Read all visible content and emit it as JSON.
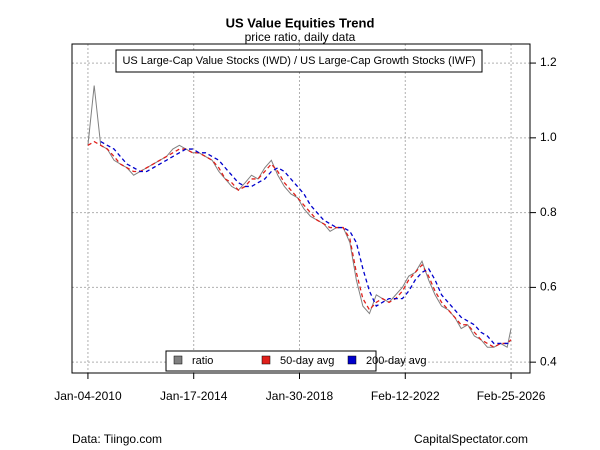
{
  "chart_data": {
    "type": "line",
    "title": "US Value Equities Trend",
    "subtitle": "price ratio, daily data",
    "annotation": "US Large-Cap Value Stocks (IWD) / US Large-Cap Growth Stocks (IWF)",
    "footer_left": "Data: Tiingo.com",
    "footer_right": "CapitalSpectator.com",
    "x": [
      "2010-01-04",
      "2010-04-01",
      "2010-07-01",
      "2010-10-01",
      "2011-01-03",
      "2011-04-01",
      "2011-07-01",
      "2011-10-03",
      "2012-01-03",
      "2012-04-02",
      "2012-07-02",
      "2012-10-01",
      "2013-01-02",
      "2013-04-01",
      "2013-07-01",
      "2013-10-01",
      "2014-01-02",
      "2014-04-01",
      "2014-07-01",
      "2014-10-01",
      "2015-01-02",
      "2015-04-01",
      "2015-07-01",
      "2015-10-01",
      "2016-01-04",
      "2016-04-01",
      "2016-07-01",
      "2016-10-03",
      "2017-01-03",
      "2017-04-03",
      "2017-07-03",
      "2017-10-02",
      "2018-01-02",
      "2018-04-02",
      "2018-07-02",
      "2018-10-01",
      "2019-01-02",
      "2019-04-01",
      "2019-07-01",
      "2019-10-01",
      "2020-01-02",
      "2020-04-01",
      "2020-07-01",
      "2020-10-01",
      "2021-01-04",
      "2021-04-01",
      "2021-07-01",
      "2021-10-01",
      "2022-01-03",
      "2022-04-01",
      "2022-07-01",
      "2022-10-03",
      "2023-01-03",
      "2023-04-03",
      "2023-07-03",
      "2023-10-02",
      "2024-01-02",
      "2024-04-01",
      "2024-07-01",
      "2024-10-01",
      "2025-01-02",
      "2025-04-01",
      "2025-07-01",
      "2025-10-01",
      "2026-01-02",
      "2026-02-25"
    ],
    "series": [
      {
        "name": "ratio",
        "color": "#808080",
        "line_style": "solid",
        "values": [
          0.98,
          1.14,
          0.98,
          0.97,
          0.94,
          0.93,
          0.92,
          0.9,
          0.91,
          0.92,
          0.93,
          0.94,
          0.95,
          0.97,
          0.98,
          0.97,
          0.96,
          0.96,
          0.95,
          0.94,
          0.91,
          0.89,
          0.87,
          0.86,
          0.88,
          0.9,
          0.89,
          0.92,
          0.94,
          0.9,
          0.87,
          0.85,
          0.84,
          0.81,
          0.79,
          0.78,
          0.77,
          0.75,
          0.76,
          0.76,
          0.72,
          0.62,
          0.55,
          0.53,
          0.58,
          0.57,
          0.56,
          0.58,
          0.6,
          0.63,
          0.64,
          0.67,
          0.62,
          0.58,
          0.55,
          0.54,
          0.52,
          0.49,
          0.5,
          0.47,
          0.46,
          0.44,
          0.44,
          0.45,
          0.44,
          0.49
        ]
      },
      {
        "name": "50-day avg",
        "color": "#e0201b",
        "line_style": "dashed",
        "values": [
          0.98,
          0.99,
          0.98,
          0.97,
          0.95,
          0.93,
          0.92,
          0.91,
          0.91,
          0.92,
          0.93,
          0.94,
          0.95,
          0.96,
          0.97,
          0.97,
          0.96,
          0.96,
          0.95,
          0.94,
          0.92,
          0.89,
          0.88,
          0.86,
          0.87,
          0.89,
          0.89,
          0.91,
          0.93,
          0.91,
          0.88,
          0.86,
          0.84,
          0.82,
          0.8,
          0.78,
          0.77,
          0.76,
          0.76,
          0.76,
          0.73,
          0.64,
          0.57,
          0.54,
          0.56,
          0.57,
          0.56,
          0.57,
          0.59,
          0.62,
          0.64,
          0.66,
          0.63,
          0.59,
          0.56,
          0.54,
          0.52,
          0.5,
          0.5,
          0.48,
          0.46,
          0.45,
          0.44,
          0.45,
          0.45,
          0.46
        ]
      },
      {
        "name": "200-day avg",
        "color": "#0000cc",
        "line_style": "dashed",
        "values": [
          null,
          null,
          0.99,
          0.98,
          0.97,
          0.95,
          0.93,
          0.92,
          0.91,
          0.91,
          0.92,
          0.93,
          0.94,
          0.95,
          0.96,
          0.97,
          0.97,
          0.96,
          0.96,
          0.95,
          0.94,
          0.92,
          0.9,
          0.88,
          0.87,
          0.87,
          0.88,
          0.89,
          0.91,
          0.92,
          0.91,
          0.89,
          0.87,
          0.85,
          0.82,
          0.8,
          0.78,
          0.77,
          0.76,
          0.76,
          0.75,
          0.72,
          0.65,
          0.59,
          0.55,
          0.56,
          0.57,
          0.57,
          0.57,
          0.59,
          0.62,
          0.64,
          0.65,
          0.62,
          0.58,
          0.56,
          0.54,
          0.52,
          0.51,
          0.5,
          0.48,
          0.47,
          0.45,
          0.45,
          0.45,
          0.45
        ]
      }
    ],
    "xlim": [
      "2009-05-27",
      "2026-11-16"
    ],
    "xticks": [
      {
        "value": "2010-01-04",
        "label": "Jan-04-2010"
      },
      {
        "value": "2014-01-17",
        "label": "Jan-17-2014"
      },
      {
        "value": "2018-01-30",
        "label": "Jan-30-2018"
      },
      {
        "value": "2022-02-12",
        "label": "Feb-12-2022"
      },
      {
        "value": "2026-02-25",
        "label": "Feb-25-2026"
      }
    ],
    "ylim": [
      0.371,
      1.251
    ],
    "yticks": [
      0.4,
      0.6,
      0.8,
      {
        "value": 1,
        "label": "1.0"
      },
      1.2
    ],
    "y_axis_side": "right",
    "grid": true,
    "legend_position": "bottom"
  }
}
